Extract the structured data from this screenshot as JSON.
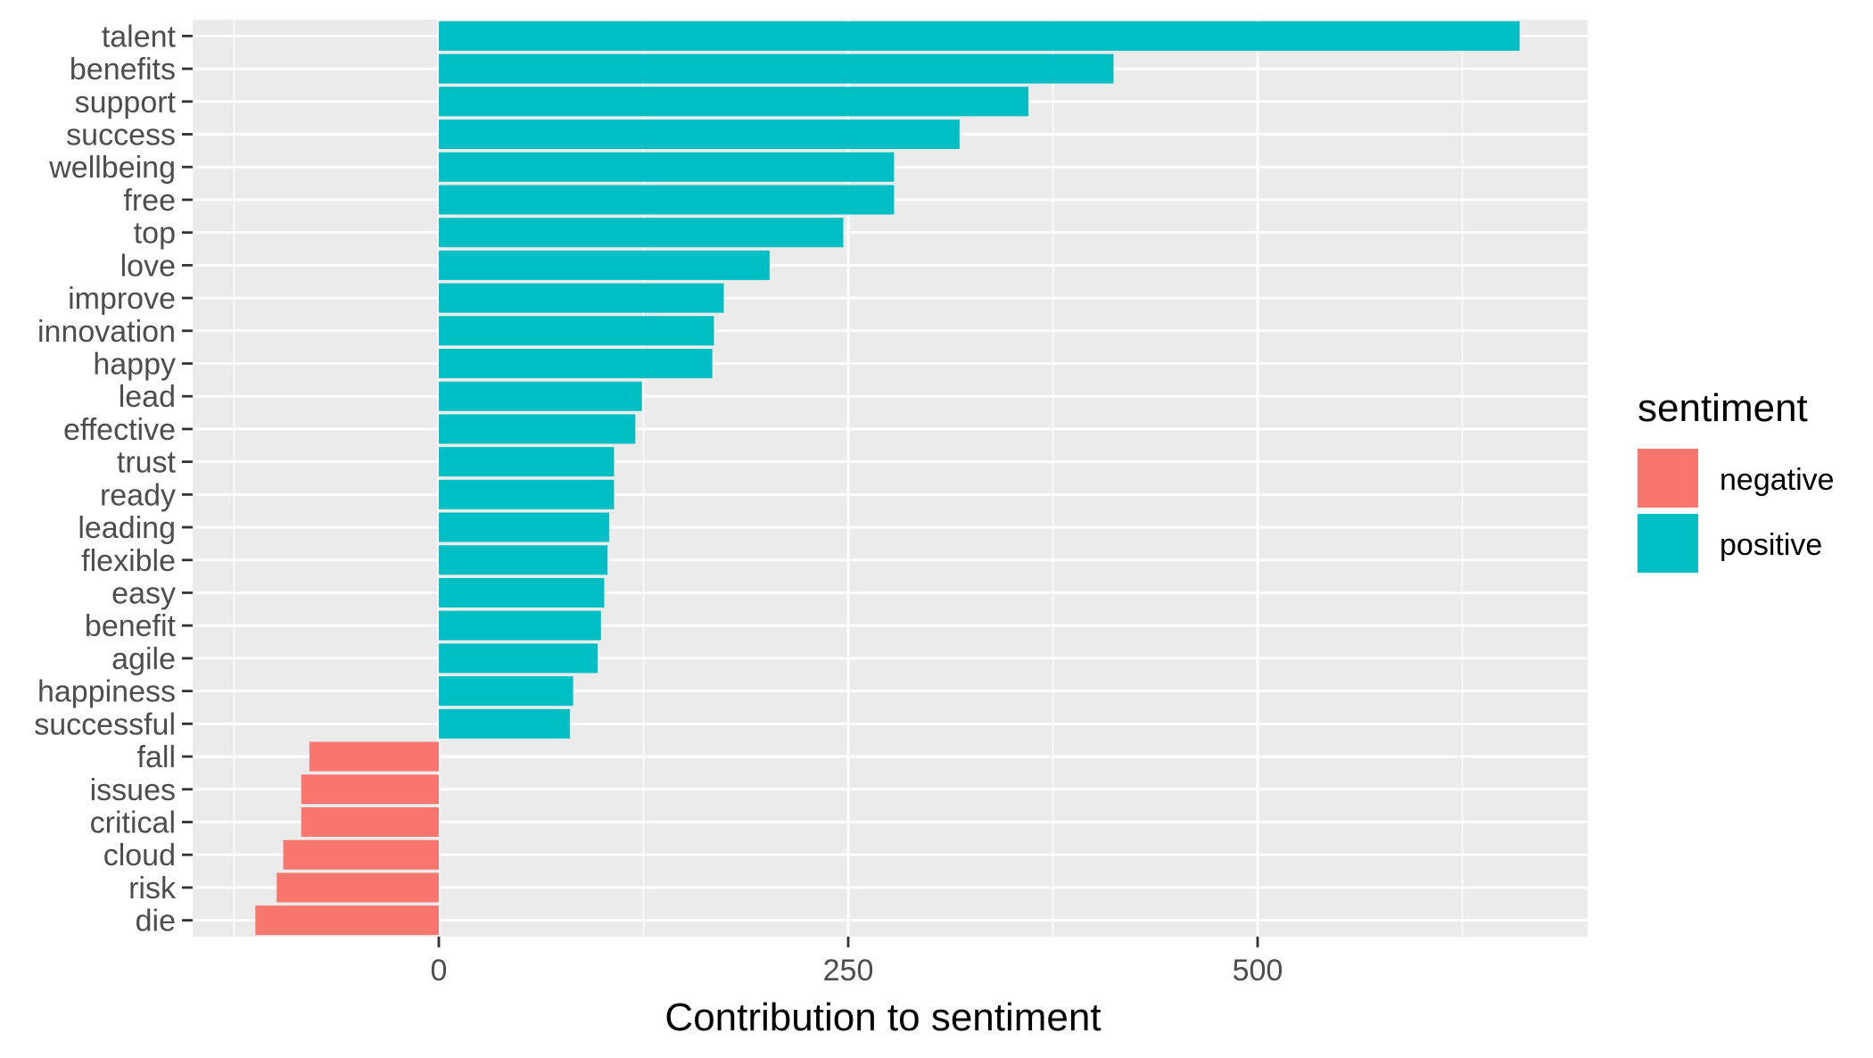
{
  "chart_data": {
    "type": "bar",
    "orientation": "horizontal",
    "xlabel": "Contribution to sentiment",
    "ylabel": "",
    "xlim": [
      -150,
      700
    ],
    "x_ticks": [
      0,
      250,
      500
    ],
    "x_tick_labels": [
      "0",
      "250",
      "500"
    ],
    "grid": true,
    "legend": {
      "title": "sentiment",
      "position": "right",
      "entries": [
        {
          "label": "negative",
          "color": "#F8766D"
        },
        {
          "label": "positive",
          "color": "#00BFC4"
        }
      ]
    },
    "colors": {
      "panel": "#EBEBEB",
      "grid": "#FFFFFF",
      "negative": "#F8766D",
      "positive": "#00BFC4"
    },
    "bars": [
      {
        "word": "talent",
        "value": 660,
        "sentiment": "positive"
      },
      {
        "word": "benefits",
        "value": 412,
        "sentiment": "positive"
      },
      {
        "word": "support",
        "value": 360,
        "sentiment": "positive"
      },
      {
        "word": "success",
        "value": 318,
        "sentiment": "positive"
      },
      {
        "word": "wellbeing",
        "value": 278,
        "sentiment": "positive"
      },
      {
        "word": "free",
        "value": 278,
        "sentiment": "positive"
      },
      {
        "word": "top",
        "value": 247,
        "sentiment": "positive"
      },
      {
        "word": "love",
        "value": 202,
        "sentiment": "positive"
      },
      {
        "word": "improve",
        "value": 174,
        "sentiment": "positive"
      },
      {
        "word": "innovation",
        "value": 168,
        "sentiment": "positive"
      },
      {
        "word": "happy",
        "value": 167,
        "sentiment": "positive"
      },
      {
        "word": "lead",
        "value": 124,
        "sentiment": "positive"
      },
      {
        "word": "effective",
        "value": 120,
        "sentiment": "positive"
      },
      {
        "word": "trust",
        "value": 107,
        "sentiment": "positive"
      },
      {
        "word": "ready",
        "value": 107,
        "sentiment": "positive"
      },
      {
        "word": "leading",
        "value": 104,
        "sentiment": "positive"
      },
      {
        "word": "flexible",
        "value": 103,
        "sentiment": "positive"
      },
      {
        "word": "easy",
        "value": 101,
        "sentiment": "positive"
      },
      {
        "word": "benefit",
        "value": 99,
        "sentiment": "positive"
      },
      {
        "word": "agile",
        "value": 97,
        "sentiment": "positive"
      },
      {
        "word": "happiness",
        "value": 82,
        "sentiment": "positive"
      },
      {
        "word": "successful",
        "value": 80,
        "sentiment": "positive"
      },
      {
        "word": "fall",
        "value": -79,
        "sentiment": "negative"
      },
      {
        "word": "issues",
        "value": -84,
        "sentiment": "negative"
      },
      {
        "word": "critical",
        "value": -84,
        "sentiment": "negative"
      },
      {
        "word": "cloud",
        "value": -95,
        "sentiment": "negative"
      },
      {
        "word": "risk",
        "value": -99,
        "sentiment": "negative"
      },
      {
        "word": "die",
        "value": -112,
        "sentiment": "negative"
      }
    ]
  }
}
